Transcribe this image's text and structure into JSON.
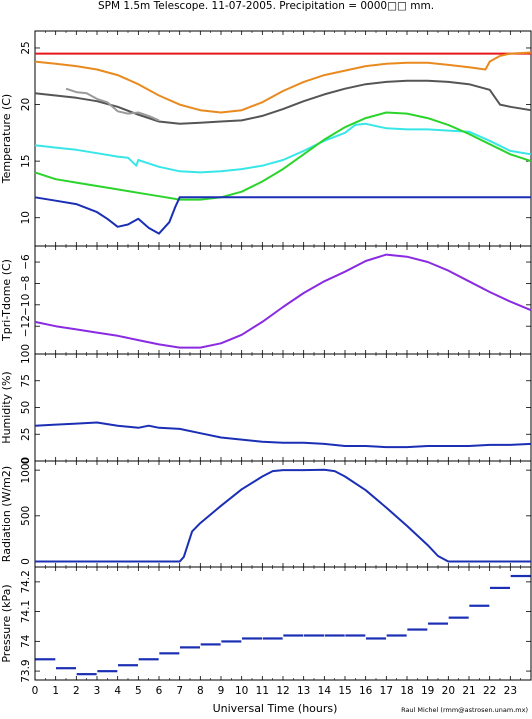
{
  "title": "SPM 1.5m Telescope. 11-07-2005. Precipitation = 0000□□ mm.",
  "xlabel": "Universal Time (hours)",
  "credit": "Raul Michel (rmm@astrosen.unam.mx)",
  "x_ticks": [
    0,
    1,
    2,
    3,
    4,
    5,
    6,
    7,
    8,
    9,
    10,
    11,
    12,
    13,
    14,
    15,
    16,
    17,
    18,
    19,
    20,
    21,
    22,
    23
  ],
  "colors": {
    "red": "#e8161b",
    "orange": "#e98a1f",
    "dark_gray": "#555555",
    "light_gray": "#9a9a9a",
    "cyan": "#38e6e8",
    "green": "#2bd42b",
    "blue": "#1b2fb5",
    "purple": "#8a2be2"
  },
  "chart_data": [
    {
      "type": "line",
      "ylabel": "Temperature (C)",
      "ylim": [
        7.5,
        26.5
      ],
      "y_ticks": [
        10,
        15,
        20,
        25
      ],
      "series": [
        {
          "color_key": "red",
          "x": [
            0,
            24
          ],
          "y": [
            24.5,
            24.5
          ]
        },
        {
          "color_key": "orange",
          "x": [
            0,
            1,
            2,
            3,
            4,
            5,
            6,
            7,
            8,
            9,
            10,
            11,
            12,
            13,
            14,
            15,
            16,
            17,
            18,
            19,
            20,
            21,
            21.8,
            22,
            22.5,
            23,
            24
          ],
          "y": [
            23.8,
            23.6,
            23.4,
            23.1,
            22.6,
            21.8,
            20.8,
            20.0,
            19.5,
            19.3,
            19.5,
            20.2,
            21.2,
            22.0,
            22.6,
            23.0,
            23.4,
            23.6,
            23.7,
            23.7,
            23.5,
            23.3,
            23.1,
            23.8,
            24.3,
            24.5,
            24.6
          ]
        },
        {
          "color_key": "dark_gray",
          "x": [
            0,
            1,
            2,
            3,
            4,
            5,
            6,
            7,
            8,
            9,
            10,
            11,
            12,
            13,
            14,
            15,
            16,
            17,
            18,
            19,
            20,
            21,
            22,
            22.5,
            23,
            24
          ],
          "y": [
            21.0,
            20.8,
            20.6,
            20.3,
            19.8,
            19.1,
            18.5,
            18.3,
            18.4,
            18.5,
            18.6,
            19.0,
            19.6,
            20.3,
            20.9,
            21.4,
            21.8,
            22.0,
            22.1,
            22.1,
            22.0,
            21.8,
            21.3,
            20.0,
            19.8,
            19.5
          ]
        },
        {
          "color_key": "light_gray",
          "x": [
            1.5,
            2,
            2.5,
            3,
            3.5,
            4,
            4.5,
            5,
            5.5,
            6
          ],
          "y": [
            21.4,
            21.1,
            21.0,
            20.5,
            20.2,
            19.4,
            19.2,
            19.3,
            19.0,
            18.6
          ]
        },
        {
          "color_key": "cyan",
          "x": [
            0,
            1,
            2,
            3,
            4,
            4.5,
            4.9,
            5,
            5.5,
            6,
            7,
            8,
            9,
            10,
            11,
            12,
            13,
            14,
            15,
            15.5,
            16,
            17,
            18,
            19,
            20,
            21,
            22,
            23,
            24
          ],
          "y": [
            16.4,
            16.2,
            16.0,
            15.7,
            15.4,
            15.3,
            14.6,
            15.1,
            14.8,
            14.5,
            14.1,
            14.0,
            14.1,
            14.3,
            14.6,
            15.1,
            15.9,
            16.8,
            17.5,
            18.2,
            18.3,
            17.9,
            17.8,
            17.8,
            17.7,
            17.6,
            16.8,
            15.9,
            15.6
          ]
        },
        {
          "color_key": "green",
          "x": [
            0,
            1,
            2,
            3,
            4,
            5,
            6,
            7,
            8,
            9,
            10,
            11,
            12,
            13,
            14,
            15,
            16,
            17,
            18,
            19,
            20,
            21,
            22,
            23,
            24
          ],
          "y": [
            14.0,
            13.4,
            13.1,
            12.8,
            12.5,
            12.2,
            11.9,
            11.6,
            11.6,
            11.8,
            12.3,
            13.2,
            14.3,
            15.6,
            16.9,
            18.0,
            18.8,
            19.3,
            19.2,
            18.8,
            18.2,
            17.4,
            16.5,
            15.6,
            15.0
          ]
        },
        {
          "color_key": "blue",
          "x": [
            0,
            1,
            2,
            3,
            3.5,
            4,
            4.5,
            5,
            5.5,
            6,
            6.5,
            6.8,
            7,
            8,
            9,
            10,
            11,
            12,
            13,
            14,
            15,
            16,
            17,
            18,
            19,
            20,
            21,
            22,
            23,
            24
          ],
          "y": [
            11.8,
            11.5,
            11.2,
            10.5,
            9.9,
            9.2,
            9.4,
            9.9,
            9.1,
            8.6,
            9.6,
            11.0,
            11.8,
            11.8,
            11.8,
            11.8,
            11.8,
            11.8,
            11.8,
            11.8,
            11.8,
            11.8,
            11.8,
            11.8,
            11.8,
            11.8,
            11.8,
            11.8,
            11.8,
            11.8
          ]
        }
      ]
    },
    {
      "type": "line",
      "ylabel": "Tpri-Tdome (C)",
      "ylim": [
        -14.6,
        -4.5
      ],
      "y_ticks": [
        -12,
        -10,
        -8,
        -6
      ],
      "y_tick_labels": [
        "−12",
        "−10",
        "−8",
        "−6"
      ],
      "series": [
        {
          "color_key": "purple",
          "x": [
            0,
            1,
            2,
            3,
            4,
            5,
            6,
            7,
            8,
            9,
            10,
            11,
            12,
            13,
            14,
            15,
            16,
            17,
            18,
            19,
            20,
            21,
            22,
            23,
            24
          ],
          "y": [
            -11.6,
            -12.0,
            -12.3,
            -12.6,
            -12.9,
            -13.3,
            -13.7,
            -14.0,
            -14.0,
            -13.6,
            -12.8,
            -11.6,
            -10.2,
            -8.9,
            -7.8,
            -6.9,
            -5.9,
            -5.3,
            -5.5,
            -6.0,
            -6.8,
            -7.8,
            -8.8,
            -9.7,
            -10.5
          ]
        }
      ]
    },
    {
      "type": "line",
      "ylabel": "Humidity (%)",
      "ylim": [
        0,
        100
      ],
      "y_ticks": [
        0,
        25,
        50,
        75,
        100
      ],
      "series": [
        {
          "color_key": "blue",
          "x": [
            0,
            1,
            2,
            3,
            4,
            5,
            5.5,
            6,
            7,
            8,
            9,
            10,
            11,
            12,
            13,
            14,
            15,
            16,
            17,
            18,
            19,
            20,
            21,
            22,
            23,
            24
          ],
          "y": [
            33,
            34,
            35,
            36,
            33,
            31,
            33,
            31,
            30,
            26,
            22,
            20,
            18,
            17,
            17,
            16,
            14,
            14,
            13,
            13,
            14,
            14,
            14,
            15,
            15,
            16
          ]
        }
      ]
    },
    {
      "type": "line",
      "ylabel": "Radiation (W/m2)",
      "ylim": [
        -60,
        1100
      ],
      "y_ticks": [
        0,
        500,
        1000
      ],
      "series": [
        {
          "color_key": "blue",
          "x": [
            0,
            7,
            7.2,
            7.6,
            8,
            9,
            10,
            11,
            11.5,
            12,
            13,
            14,
            14.5,
            15,
            16,
            17,
            18,
            19,
            19.5,
            20,
            24
          ],
          "y": [
            0,
            0,
            50,
            330,
            420,
            610,
            790,
            930,
            990,
            1000,
            1000,
            1005,
            990,
            930,
            780,
            590,
            390,
            180,
            60,
            0,
            0
          ]
        }
      ]
    },
    {
      "type": "scatter",
      "ylabel": "Pressure (kPa)",
      "ylim": [
        73.87,
        74.25
      ],
      "y_ticks": [
        73.9,
        74,
        74.1,
        74.2
      ],
      "series": [
        {
          "color_key": "blue",
          "x": [
            0.5,
            1.5,
            2.5,
            3.5,
            4.5,
            5.5,
            6.5,
            7.5,
            8.5,
            9.5,
            10.5,
            11.5,
            12.5,
            13.5,
            14.5,
            15.5,
            16.5,
            17.5,
            18.5,
            19.5,
            20.5,
            21.5,
            22.5,
            23.5
          ],
          "y": [
            73.94,
            73.91,
            73.89,
            73.9,
            73.92,
            73.94,
            73.96,
            73.98,
            73.99,
            74.0,
            74.01,
            74.01,
            74.02,
            74.02,
            74.02,
            74.02,
            74.01,
            74.02,
            74.04,
            74.06,
            74.08,
            74.12,
            74.18,
            74.22
          ]
        }
      ]
    }
  ]
}
